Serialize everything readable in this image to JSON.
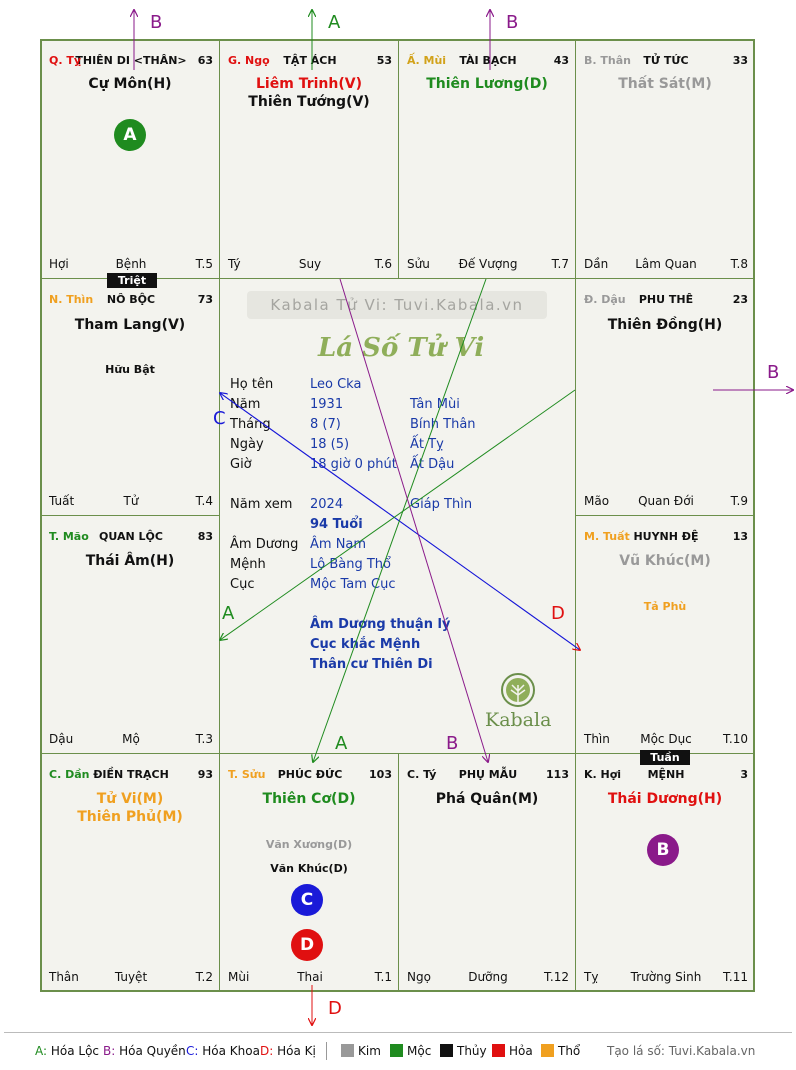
{
  "cells": [
    {
      "id": "ty",
      "can": "Q. Tỵ",
      "can_color": "#e01010",
      "palace": "THIÊN DI <THÂN>",
      "age": "63",
      "mains": [
        {
          "text": "Cự Môn(H)",
          "color": "#111111"
        }
      ],
      "minors": [],
      "foot": {
        "l": "Hợi",
        "c": "Bệnh",
        "r": "T.5"
      }
    },
    {
      "id": "ngo",
      "can": "G. Ngọ",
      "can_color": "#e01010",
      "palace": "TẬT ÁCH",
      "age": "53",
      "mains": [
        {
          "text": "Liêm Trinh(V)",
          "color": "#e01010"
        },
        {
          "text": "Thiên Tướng(V)",
          "color": "#111111"
        }
      ],
      "minors": [],
      "foot": {
        "l": "Tý",
        "c": "Suy",
        "r": "T.6"
      }
    },
    {
      "id": "mui",
      "can": "Ấ. Mùi",
      "can_color": "#d2a21a",
      "palace": "TÀI BẠCH",
      "age": "43",
      "mains": [
        {
          "text": "Thiên Lương(D)",
          "color": "#1f8b1f"
        }
      ],
      "minors": [],
      "foot": {
        "l": "Sửu",
        "c": "Đế Vượng",
        "r": "T.7"
      }
    },
    {
      "id": "than",
      "can": "B. Thân",
      "can_color": "#999999",
      "palace": "TỬ TỨC",
      "age": "33",
      "mains": [
        {
          "text": "Thất Sát(M)",
          "color": "#999999"
        }
      ],
      "minors": [],
      "foot": {
        "l": "Dần",
        "c": "Lâm Quan",
        "r": "T.8"
      }
    },
    {
      "id": "thin",
      "can": "N. Thìn",
      "can_color": "#f0a020",
      "palace": "NÔ BỘC",
      "age": "73",
      "mains": [
        {
          "text": "Tham Lang(V)",
          "color": "#111111"
        }
      ],
      "minors": [
        {
          "text": "Hữu Bật",
          "color": "#111111"
        }
      ],
      "foot": {
        "l": "Tuất",
        "c": "Tử",
        "r": "T.4"
      }
    },
    {
      "id": "dau",
      "can": "Đ. Dậu",
      "can_color": "#999999",
      "palace": "PHU THÊ",
      "age": "23",
      "mains": [
        {
          "text": "Thiên Đồng(H)",
          "color": "#111111"
        }
      ],
      "minors": [],
      "foot": {
        "l": "Mão",
        "c": "Quan Đới",
        "r": "T.9"
      }
    },
    {
      "id": "mao",
      "can": "T. Mão",
      "can_color": "#1f8b1f",
      "palace": "QUAN LỘC",
      "age": "83",
      "mains": [
        {
          "text": "Thái Âm(H)",
          "color": "#111111"
        }
      ],
      "minors": [],
      "foot": {
        "l": "Dậu",
        "c": "Mộ",
        "r": "T.3"
      }
    },
    {
      "id": "tuat",
      "can": "M. Tuất",
      "can_color": "#f0a020",
      "palace": "HUYNH ĐỆ",
      "age": "13",
      "mains": [
        {
          "text": "Vũ Khúc(M)",
          "color": "#999999"
        }
      ],
      "minors": [
        {
          "text": "Tả Phù",
          "color": "#f0a020"
        }
      ],
      "foot": {
        "l": "Thìn",
        "c": "Mộc Dục",
        "r": "T.10"
      }
    },
    {
      "id": "dan",
      "can": "C. Dần",
      "can_color": "#1f8b1f",
      "palace": "ĐIỀN TRẠCH",
      "age": "93",
      "mains": [
        {
          "text": "Tử Vi(M)",
          "color": "#f0a020"
        },
        {
          "text": "Thiên Phủ(M)",
          "color": "#f0a020"
        }
      ],
      "minors": [],
      "foot": {
        "l": "Thân",
        "c": "Tuyệt",
        "r": "T.2"
      }
    },
    {
      "id": "suu",
      "can": "T. Sửu",
      "can_color": "#f0a020",
      "palace": "PHÚC ĐỨC",
      "age": "103",
      "mains": [
        {
          "text": "Thiên Cơ(D)",
          "color": "#1f8b1f"
        }
      ],
      "minors": [
        {
          "text": "Văn Xương(D)",
          "color": "#999999"
        },
        {
          "text": "Văn Khúc(D)",
          "color": "#111111"
        }
      ],
      "foot": {
        "l": "Mùi",
        "c": "Thai",
        "r": "T.1"
      }
    },
    {
      "id": "ty2",
      "can": "C. Tý",
      "can_color": "#111111",
      "palace": "PHỤ MẪU",
      "age": "113",
      "mains": [
        {
          "text": "Phá Quân(M)",
          "color": "#111111"
        }
      ],
      "minors": [],
      "foot": {
        "l": "Ngọ",
        "c": "Dưỡng",
        "r": "T.12"
      }
    },
    {
      "id": "hoi",
      "can": "K. Hợi",
      "can_color": "#111111",
      "palace": "MỆNH",
      "age": "3",
      "mains": [
        {
          "text": "Thái Dương(H)",
          "color": "#e01010"
        }
      ],
      "minors": [],
      "foot": {
        "l": "Tỵ",
        "c": "Trường Sinh",
        "r": "T.11"
      }
    }
  ],
  "badges": {
    "triet": "Triệt",
    "tuan": "Tuần"
  },
  "circles": {
    "a": "A",
    "b": "B",
    "c": "C",
    "d": "D"
  },
  "center": {
    "watermark": "Kabala Tử Vi: Tuvi.Kabala.vn",
    "script_title": "Lá Số Tử Vi",
    "rows": [
      {
        "k": "Họ tên",
        "v": "Leo Cka",
        "v2": ""
      },
      {
        "k": "Năm",
        "v": "1931",
        "v2": "Tân Mùi"
      },
      {
        "k": "Tháng",
        "v": "8  (7)",
        "v2": "Bính Thân"
      },
      {
        "k": "Ngày",
        "v": "18  (5)",
        "v2": "Ất Tỵ"
      },
      {
        "k": "Giờ",
        "v": "18 giờ 0 phút",
        "v2": "Ất Dậu"
      }
    ],
    "year_row": {
      "k": "Năm xem",
      "v": "2024",
      "v2": "Giáp Thìn"
    },
    "age_label": "94 Tuổi",
    "rows2": [
      {
        "k": "Âm Dương",
        "v": "Âm Nam"
      },
      {
        "k": "Mệnh",
        "v": "Lộ Bàng Thổ"
      },
      {
        "k": "Cục",
        "v": "Mộc Tam Cục"
      }
    ],
    "notes": [
      "Âm Dương thuận lý",
      "Cục khắc Mệnh",
      "Thân cư Thiên Di"
    ],
    "brand": "Kabala"
  },
  "arrow_labels": {
    "b1": "B",
    "a1": "A",
    "b2": "B",
    "b3": "B",
    "c1": "C",
    "a2": "A",
    "d1": "D",
    "a3": "A",
    "b4": "B",
    "d2": "D"
  },
  "legend": {
    "transforms": [
      {
        "key": "A:",
        "label": "Hóa Lộc",
        "color": "#1f8b1f"
      },
      {
        "key": "B:",
        "label": "Hóa Quyền",
        "color": "#8a1a8a"
      },
      {
        "key": "C:",
        "label": "Hóa Khoa",
        "color": "#1a1ad8"
      },
      {
        "key": "D:",
        "label": "Hóa Kị",
        "color": "#e01010"
      }
    ],
    "elements": [
      {
        "label": "Kim",
        "color": "#999999"
      },
      {
        "label": "Mộc",
        "color": "#1f8b1f"
      },
      {
        "label": "Thủy",
        "color": "#111111"
      },
      {
        "label": "Hỏa",
        "color": "#e01010"
      },
      {
        "label": "Thổ",
        "color": "#f0a020"
      }
    ],
    "credit": "Tạo lá số: Tuvi.Kabala.vn"
  },
  "colors": {
    "border": "#6b8f4b",
    "hoa_loc": "#1f8b1f",
    "hoa_quyen": "#8a1a8a",
    "hoa_khoa": "#1a1ad8",
    "hoa_ki": "#e01010"
  }
}
